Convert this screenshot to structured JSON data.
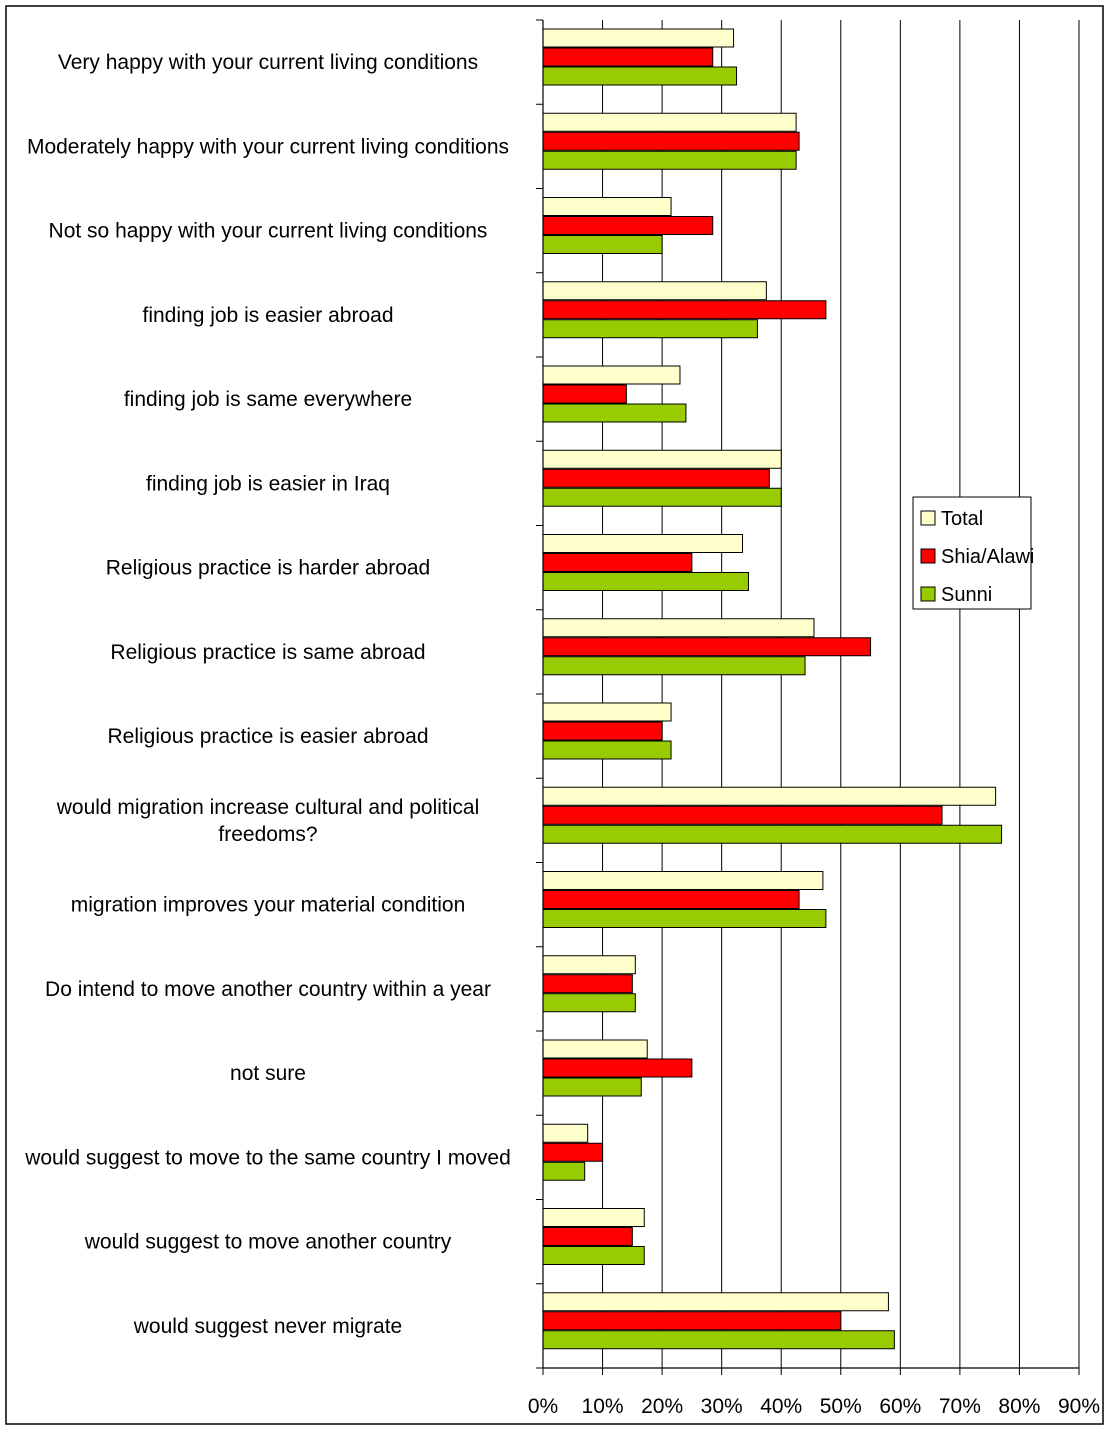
{
  "chart_data": {
    "type": "bar",
    "orientation": "horizontal",
    "categories": [
      "Very happy with your current living conditions",
      "Moderately happy with your current living conditions",
      "Not so happy with your current living conditions",
      "finding job is easier abroad",
      "finding job is same everywhere",
      "finding job is easier in Iraq",
      "Religious practice is harder abroad",
      "Religious practice is same abroad",
      "Religious practice is easier abroad",
      "would migration increase cultural and political freedoms?",
      "migration improves your material condition",
      "Do intend to move another country within a year",
      "not sure",
      "would suggest to move to the same country I moved",
      "would suggest to move another country",
      "would suggest never migrate"
    ],
    "series": [
      {
        "name": "Total",
        "color": "#FFFFCC",
        "values": [
          32,
          42.5,
          21.5,
          37.5,
          23,
          40,
          33.5,
          45.5,
          21.5,
          76,
          47,
          15.5,
          17.5,
          7.5,
          17,
          58
        ]
      },
      {
        "name": "Shia/Alawi",
        "color": "#FF0000",
        "values": [
          28.5,
          43,
          28.5,
          47.5,
          14,
          38,
          25,
          55,
          20,
          67,
          43,
          15,
          25,
          10,
          15,
          50
        ]
      },
      {
        "name": "Sunni",
        "color": "#99CC00",
        "values": [
          32.5,
          42.5,
          20,
          36,
          24,
          40,
          34.5,
          44,
          21.5,
          77,
          47.5,
          15.5,
          16.5,
          7,
          17,
          59
        ]
      }
    ],
    "xlim": [
      0,
      90
    ],
    "x_ticks": [
      "0%",
      "10%",
      "20%",
      "30%",
      "40%",
      "50%",
      "60%",
      "70%",
      "80%",
      "90%"
    ],
    "grid": true,
    "legend_position": "right",
    "title": "",
    "xlabel": "",
    "ylabel": ""
  }
}
